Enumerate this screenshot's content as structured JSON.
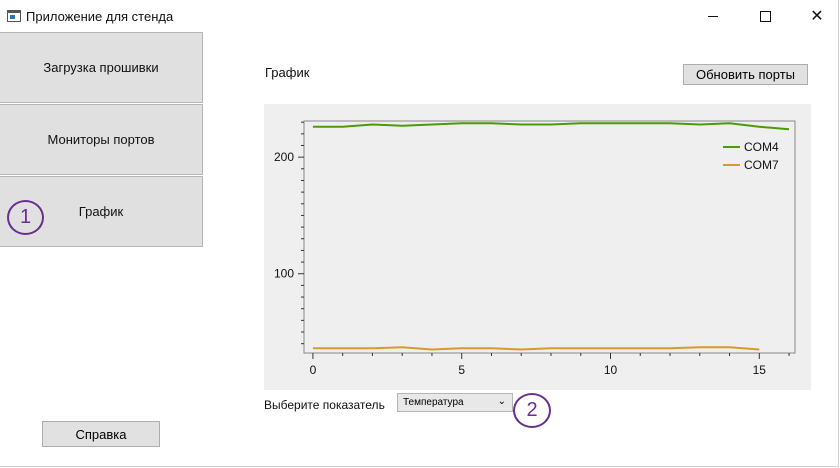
{
  "window": {
    "title": "Приложение для стенда"
  },
  "titlebar": {
    "minimize": "–",
    "maximize": "□",
    "close": "✕"
  },
  "nav": {
    "items": [
      {
        "label": "Загрузка прошивки"
      },
      {
        "label": "Мониторы портов"
      },
      {
        "label": "График"
      }
    ]
  },
  "annotations": {
    "one": "1",
    "two": "2"
  },
  "help_button": "Справка",
  "graph_panel": {
    "title": "График",
    "refresh_button": "Обновить порты",
    "select_label": "Выберите показатель",
    "select_value": "Температура"
  },
  "chart_data": {
    "type": "line",
    "title": "",
    "xlabel": "",
    "ylabel": "",
    "xlim": [
      -0.3,
      16.2
    ],
    "ylim": [
      32,
      231
    ],
    "x_ticks": [
      "0",
      "5",
      "10",
      "15"
    ],
    "y_ticks": [
      "100",
      "200"
    ],
    "legend_position": "top-right",
    "series": [
      {
        "name": "COM4",
        "color": "#4e9a06",
        "x": [
          0,
          1,
          2,
          3,
          4,
          5,
          6,
          7,
          8,
          9,
          10,
          11,
          12,
          13,
          14,
          15,
          16
        ],
        "y": [
          226,
          226,
          228,
          227,
          228,
          229,
          229,
          228,
          228,
          229,
          229,
          229,
          229,
          228,
          229,
          226,
          224
        ]
      },
      {
        "name": "COM7",
        "color": "#d99a2b",
        "x": [
          0,
          1,
          2,
          3,
          4,
          5,
          6,
          7,
          8,
          9,
          10,
          11,
          12,
          13,
          14,
          15
        ],
        "y": [
          36,
          36,
          36,
          37,
          35,
          36,
          36,
          35,
          36,
          36,
          36,
          36,
          36,
          37,
          37,
          35
        ]
      }
    ]
  }
}
